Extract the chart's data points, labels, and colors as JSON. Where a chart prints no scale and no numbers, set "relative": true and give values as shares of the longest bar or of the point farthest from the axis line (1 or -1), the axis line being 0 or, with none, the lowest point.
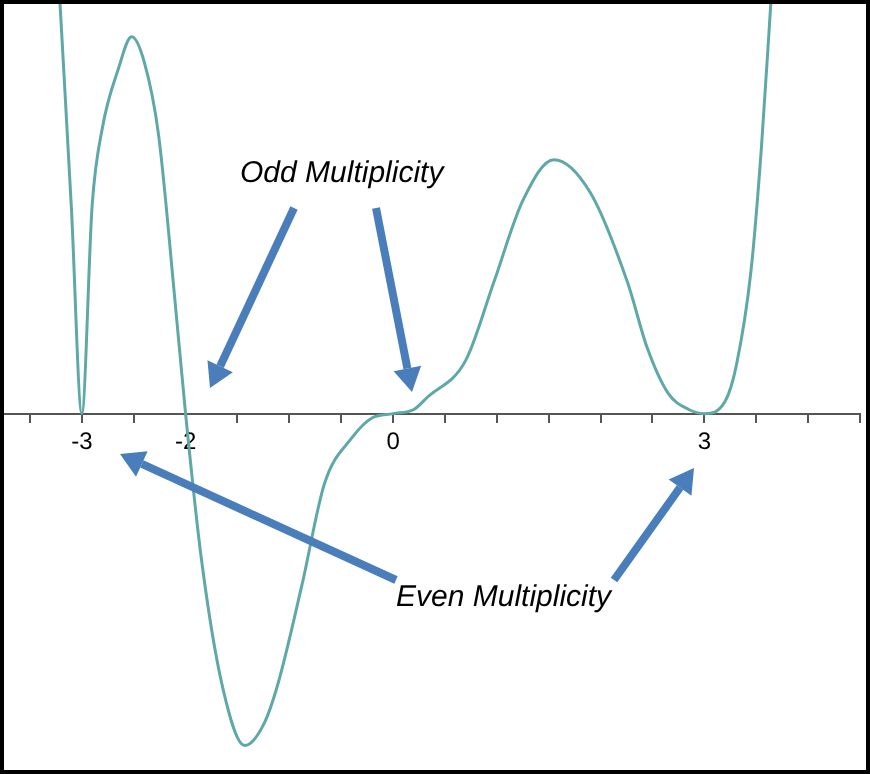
{
  "chart_data": {
    "type": "line",
    "relative": true,
    "color": "#5fa8a8",
    "marker": "none",
    "grid": false,
    "legend": false,
    "x": [
      -3.21,
      -3.1,
      -3.0,
      -2.9,
      -2.8,
      -2.65,
      -2.52,
      -2.4,
      -2.26,
      -2.1,
      -2.0,
      -1.85,
      -1.65,
      -1.43,
      -1.25,
      -1.11,
      -0.88,
      -0.66,
      -0.4,
      -0.2,
      0,
      0.2,
      0.33,
      0.7,
      0.97,
      1.25,
      1.55,
      1.9,
      2.26,
      2.45,
      2.65,
      2.85,
      3.0,
      3.2,
      3.31,
      3.45,
      3.55,
      3.64
    ],
    "values": [
      1.0,
      0.5,
      0,
      0.51,
      0.7,
      0.84,
      0.92,
      0.86,
      0.68,
      0.27,
      0,
      -0.35,
      -0.66,
      -0.81,
      -0.76,
      -0.66,
      -0.42,
      -0.17,
      -0.06,
      -0.01,
      0,
      0.01,
      0.04,
      0.13,
      0.32,
      0.52,
      0.62,
      0.54,
      0.32,
      0.16,
      0.05,
      0.01,
      0,
      0.03,
      0.12,
      0.35,
      0.65,
      1.0
    ],
    "xlim": [
      -3.75,
      4.5
    ],
    "xticks": [
      {
        "value": -3.5,
        "label": null
      },
      -3,
      {
        "value": -2.5,
        "label": null
      },
      -2,
      {
        "value": -1.5,
        "label": null
      },
      {
        "value": -1,
        "label": null
      },
      {
        "value": -0.5,
        "label": null
      },
      0,
      {
        "value": 0.5,
        "label": null
      },
      {
        "value": 1,
        "label": null
      },
      {
        "value": 1.5,
        "label": null
      },
      {
        "value": 2,
        "label": null
      },
      {
        "value": 2.5,
        "label": null
      },
      3,
      {
        "value": 3.5,
        "label": null
      },
      {
        "value": 4,
        "label": null
      },
      {
        "value": 4.5,
        "label": null
      }
    ],
    "annotations": [
      "Odd Multiplicity",
      "Even Multiplicity"
    ]
  }
}
